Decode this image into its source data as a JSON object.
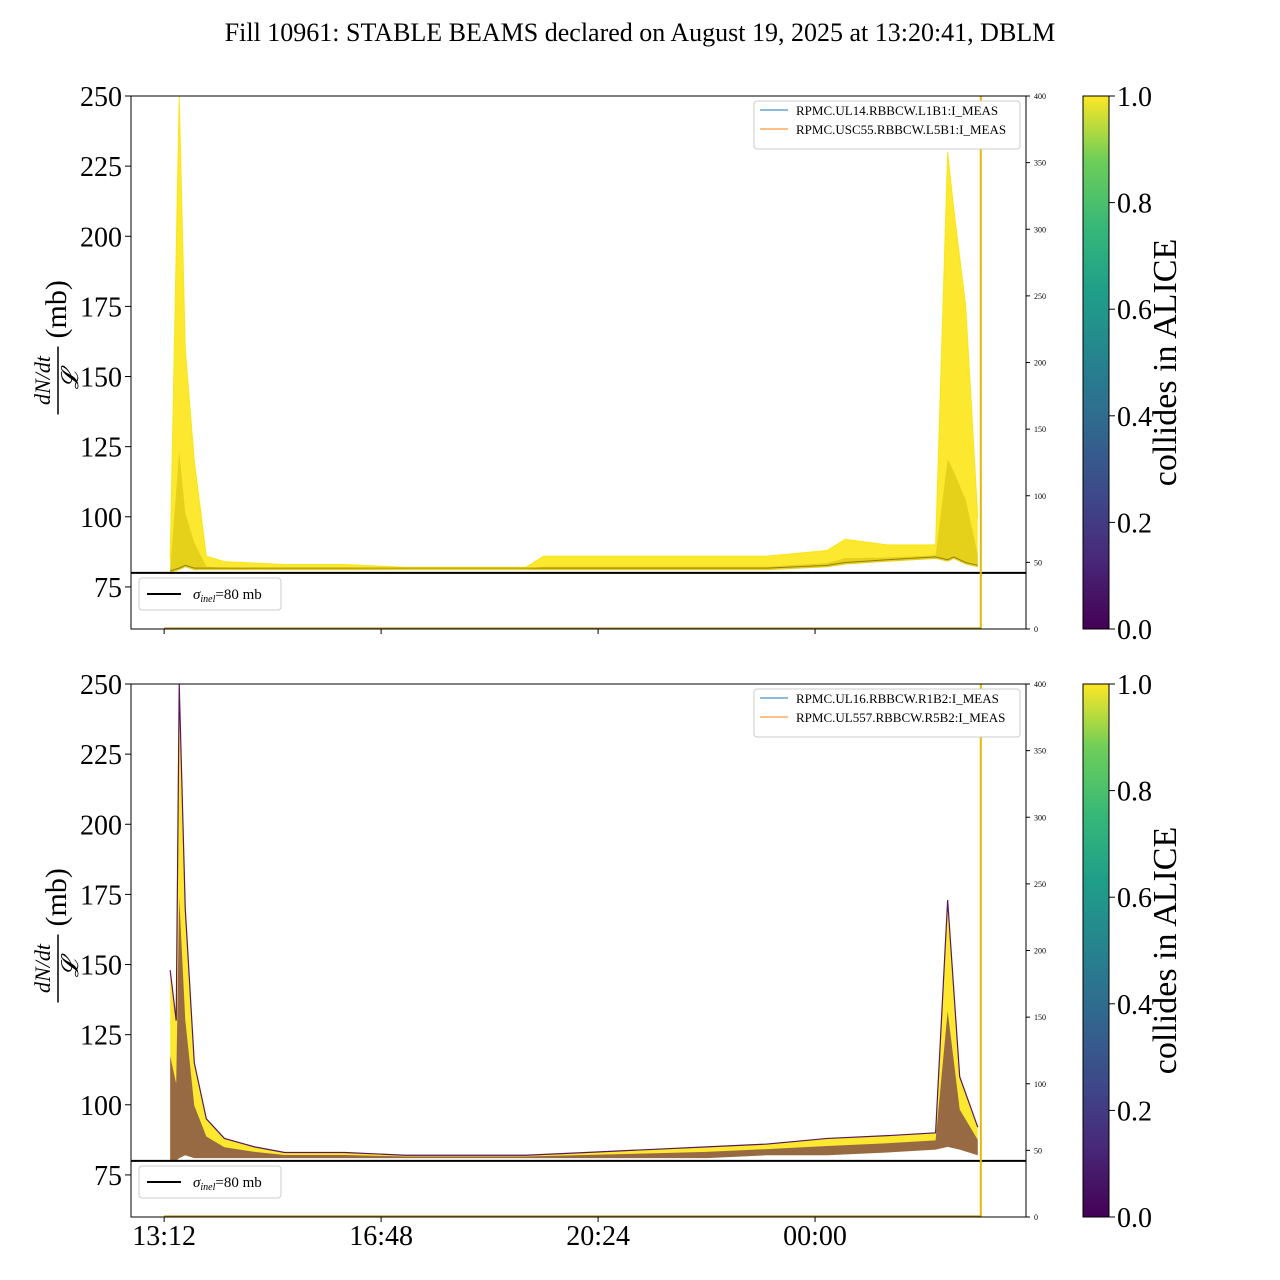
{
  "title": "Fill 10961: STABLE BEAMS declared on August 19, 2025 at 13:20:41, DBLM",
  "colors": {
    "viridis_low": "#440154",
    "viridis_high": "#fde725",
    "series_a": "#1f77b4",
    "series_b": "#ff7f0e",
    "vline": "#e6b800",
    "reference_line": "#000000"
  },
  "chart_data": [
    {
      "type": "area",
      "panel": "top",
      "ylabel": "dN/dt / 𝓛 (mb)",
      "ylim": [
        60,
        250
      ],
      "yticks": [
        75,
        100,
        125,
        150,
        175,
        200,
        225,
        250
      ],
      "secondary_yaxis": {
        "ylim": [
          0,
          400
        ],
        "ticks": [
          0,
          50,
          100,
          150,
          200,
          250,
          300,
          350,
          400
        ]
      },
      "x_tick_labels": [
        "13:12",
        "16:48",
        "20:24",
        "00:00"
      ],
      "x_ticks_hours": [
        0,
        3.6,
        7.2,
        10.8
      ],
      "xlim_hours": [
        -0.55,
        14.3
      ],
      "vertical_line_hours": 13.55,
      "reference_line": {
        "y": 80,
        "label": "σinel=80 mb"
      },
      "legend": [
        "RPMC.UL14.RBBCW.L1B1:I_MEAS",
        "RPMC.USC55.RBBCW.L5B1:I_MEAS"
      ],
      "colorbar": {
        "label": "collides in ALICE",
        "min": 0.0,
        "max": 1.0,
        "ticks": [
          "0.0",
          "0.2",
          "0.4",
          "0.6",
          "0.8",
          "1.0"
        ]
      },
      "envelope": {
        "hours": [
          0.1,
          0.25,
          0.35,
          0.5,
          0.7,
          1,
          2,
          3,
          4,
          5,
          6,
          6.3,
          7,
          8,
          9,
          10,
          11,
          11.3,
          12,
          12.8,
          13.0,
          13.1,
          13.3,
          13.5
        ],
        "upper": [
          85,
          250,
          160,
          120,
          86,
          84,
          83,
          83,
          82,
          82,
          82,
          86,
          86,
          86,
          86,
          86,
          88,
          92,
          90,
          90,
          230,
          210,
          175,
          100
        ],
        "lower": [
          80,
          81,
          82,
          81,
          81,
          81,
          81,
          81,
          81,
          81,
          81,
          81,
          81,
          81,
          81,
          81,
          82,
          83,
          84,
          85,
          84,
          85,
          83,
          82
        ]
      },
      "dominant_colour_value": 1.0
    },
    {
      "type": "area",
      "panel": "bottom",
      "ylabel": "dN/dt / 𝓛 (mb)",
      "ylim": [
        60,
        250
      ],
      "yticks": [
        75,
        100,
        125,
        150,
        175,
        200,
        225,
        250
      ],
      "secondary_yaxis": {
        "ylim": [
          0,
          400
        ],
        "ticks": [
          0,
          50,
          100,
          150,
          200,
          250,
          300,
          350,
          400
        ]
      },
      "x_tick_labels": [
        "13:12",
        "16:48",
        "20:24",
        "00:00"
      ],
      "x_ticks_hours": [
        0,
        3.6,
        7.2,
        10.8
      ],
      "xlim_hours": [
        -0.55,
        14.3
      ],
      "vertical_line_hours": 13.55,
      "reference_line": {
        "y": 80,
        "label": "σinel=80 mb"
      },
      "legend": [
        "RPMC.UL16.RBBCW.R1B2:I_MEAS",
        "RPMC.UL557.RBBCW.R5B2:I_MEAS"
      ],
      "colorbar": {
        "label": "collides in ALICE",
        "min": 0.0,
        "max": 1.0,
        "ticks": [
          "0.0",
          "0.2",
          "0.4",
          "0.6",
          "0.8",
          "1.0"
        ]
      },
      "envelope": {
        "hours": [
          0.1,
          0.2,
          0.25,
          0.35,
          0.5,
          0.7,
          1,
          1.5,
          2,
          3,
          4,
          5,
          6,
          7,
          8,
          9,
          10,
          11,
          12,
          12.8,
          13.0,
          13.2,
          13.5
        ],
        "upper": [
          148,
          130,
          250,
          170,
          115,
          95,
          88,
          85,
          83,
          83,
          82,
          82,
          82,
          83,
          84,
          85,
          86,
          88,
          89,
          90,
          173,
          110,
          92
        ],
        "lower": [
          80,
          80,
          81,
          82,
          81,
          81,
          81,
          81,
          81,
          81,
          81,
          81,
          81,
          81,
          81,
          81,
          82,
          82,
          83,
          84,
          85,
          84,
          82
        ]
      },
      "dominant_colour_value": 0.0
    }
  ]
}
